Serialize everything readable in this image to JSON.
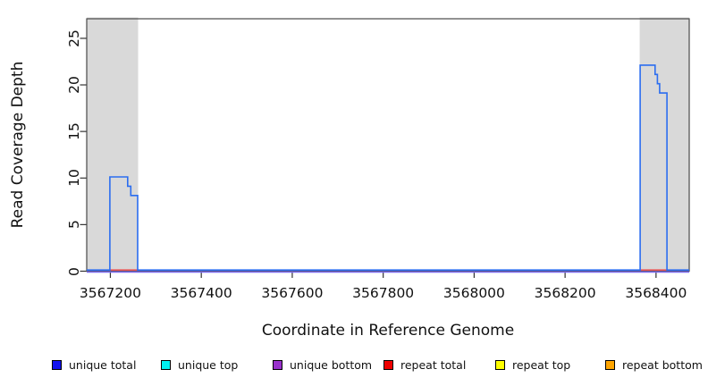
{
  "chart_data": {
    "type": "line",
    "subtype": "step-coverage",
    "title": "",
    "xlabel": "Coordinate in Reference Genome",
    "ylabel": "Read Coverage Depth",
    "xlim": [
      3567148,
      3568473
    ],
    "ylim": [
      0,
      27.1
    ],
    "x_ticks": [
      3567200,
      3567400,
      3567600,
      3567800,
      3568000,
      3568200,
      3568400
    ],
    "y_ticks": [
      0,
      5,
      10,
      15,
      20,
      25
    ],
    "grid": false,
    "legend_position": "bottom",
    "plot_background": "#ffffff",
    "repeat_region_color": "#d9d9d9",
    "axis_color": "#333333",
    "repeat_regions": [
      [
        3567148,
        3567261
      ],
      [
        3568364,
        3568473
      ]
    ],
    "series": [
      {
        "name": "unique top",
        "color": "#00f0f0",
        "segments": []
      },
      {
        "name": "repeat top",
        "color": "#ffff00",
        "segments": []
      },
      {
        "name": "repeat bottom",
        "color": "#ffa500",
        "segments": []
      },
      {
        "name": "unique bottom",
        "color": "#7d6bef",
        "segments": [
          [
            [
              3567148,
              0
            ],
            [
              3568473,
              0
            ]
          ]
        ]
      },
      {
        "name": "repeat total",
        "color": "#e85454",
        "segments": [
          [
            [
              3567199,
              0
            ],
            [
              3567260,
              0
            ]
          ],
          [
            [
              3568365,
              0
            ],
            [
              3568424,
              0
            ]
          ]
        ]
      },
      {
        "name": "unique total",
        "color": "#2b6df0",
        "segments": [
          [
            [
              3567148,
              0
            ],
            [
              3567199,
              0
            ],
            [
              3567199,
              10
            ],
            [
              3567238,
              10
            ],
            [
              3567238,
              9
            ],
            [
              3567245,
              9
            ],
            [
              3567245,
              8
            ],
            [
              3567260,
              8
            ],
            [
              3567260,
              0
            ],
            [
              3568365,
              0
            ],
            [
              3568365,
              22
            ],
            [
              3568398,
              22
            ],
            [
              3568398,
              21
            ],
            [
              3568403,
              21
            ],
            [
              3568403,
              20
            ],
            [
              3568408,
              20
            ],
            [
              3568408,
              19
            ],
            [
              3568424,
              19
            ],
            [
              3568424,
              0
            ],
            [
              3568473,
              0
            ]
          ]
        ]
      }
    ],
    "legend": [
      {
        "label": "unique total",
        "color": "#1111ee"
      },
      {
        "label": "unique top",
        "color": "#00f0f0"
      },
      {
        "label": "unique bottom",
        "color": "#9932cc"
      },
      {
        "label": "repeat total",
        "color": "#ee0000"
      },
      {
        "label": "repeat top",
        "color": "#ffff00"
      },
      {
        "label": "repeat bottom",
        "color": "#ffa500"
      }
    ]
  }
}
